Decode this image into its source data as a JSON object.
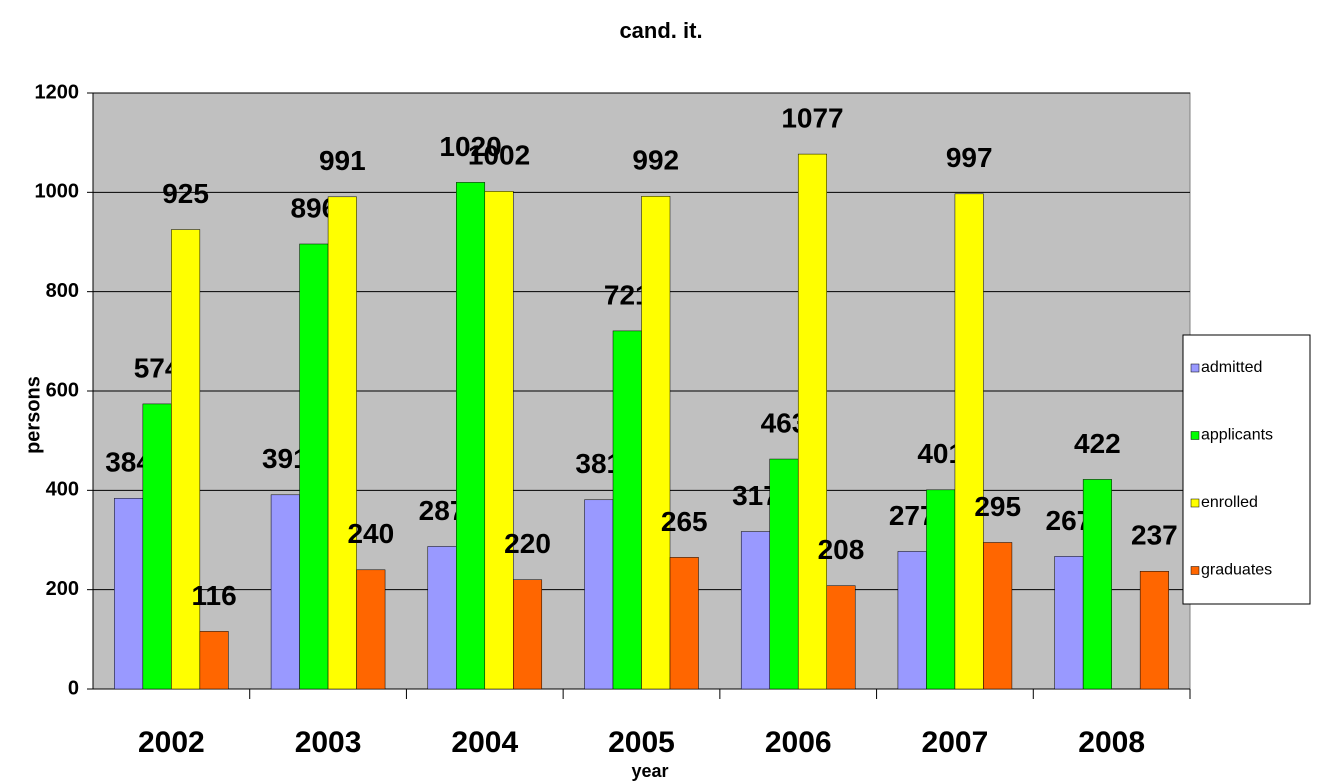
{
  "chart_data": {
    "type": "bar",
    "title": "cand. it.",
    "x_label": "year",
    "y_label": "persons",
    "categories": [
      "2002",
      "2003",
      "2004",
      "2005",
      "2006",
      "2007",
      "2008"
    ],
    "series": [
      {
        "name": "admitted",
        "color": "#9999ff",
        "values": [
          384,
          391,
          287,
          381,
          317,
          277,
          267
        ]
      },
      {
        "name": "applicants",
        "color": "#00ff00",
        "values": [
          574,
          896,
          1020,
          721,
          463,
          401,
          422
        ]
      },
      {
        "name": "enrolled",
        "color": "#ffff00",
        "values": [
          925,
          991,
          1002,
          992,
          1077,
          997,
          null
        ]
      },
      {
        "name": "graduates",
        "color": "#ff6600",
        "values": [
          116,
          240,
          220,
          265,
          208,
          295,
          237
        ]
      }
    ],
    "ylim": [
      0,
      1200
    ],
    "yticks": [
      0,
      200,
      400,
      600,
      800,
      1000,
      1200
    ],
    "grid": true,
    "legend": "right"
  }
}
